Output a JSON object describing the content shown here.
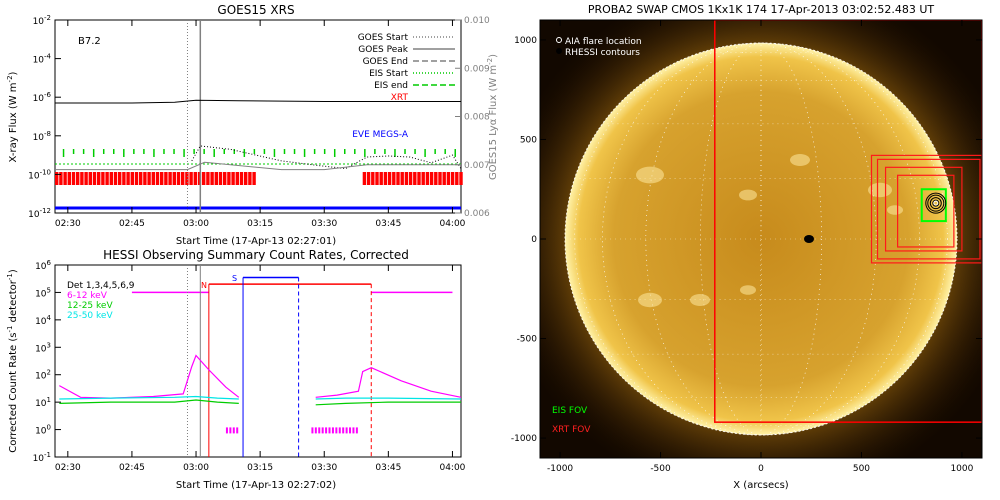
{
  "goes": {
    "title": "GOES15 XRS",
    "flare_class": "B7.2",
    "xtitle": "Start Time (17-Apr-13 02:27:01)",
    "ylabel": "X-ray Flux (W m",
    "ylabel_sup": "-2",
    "ylabel_tail": ")",
    "y2label": "GOES15 Lyα Flux (W m",
    "y2label_sup": "-2",
    "y2label_tail": ")",
    "yticks": [
      {
        "base": "10",
        "exp": "-2"
      },
      {
        "base": "10",
        "exp": "-4"
      },
      {
        "base": "10",
        "exp": "-6"
      },
      {
        "base": "10",
        "exp": "-8"
      },
      {
        "base": "10",
        "exp": "-10"
      },
      {
        "base": "10",
        "exp": "-12"
      }
    ],
    "y2ticks": [
      "0.010",
      "0.009",
      "0.008",
      "0.007",
      "0.006"
    ],
    "legend": [
      {
        "label": "GOES Start",
        "color": "#808080",
        "style": "dotted"
      },
      {
        "label": "GOES Peak",
        "color": "#808080",
        "style": "solid"
      },
      {
        "label": "GOES End",
        "color": "#808080",
        "style": "dashed"
      },
      {
        "label": "EIS Start",
        "color": "#00cc00",
        "style": "dotted"
      },
      {
        "label": "EIS end",
        "color": "#00cc00",
        "style": "dashed"
      },
      {
        "label": "XRT",
        "color": "#ff0000",
        "style": "none"
      },
      {
        "label": "EVE MEGS-A",
        "color": "#0000ff",
        "style": "none"
      }
    ]
  },
  "hessi": {
    "title": "HESSI Observing Summary Count Rates, Corrected",
    "xtitle": "Start Time (17-Apr-13 02:27:02)",
    "ylabel": "Corrected Count Rate (s",
    "ylabel_sup": "-1",
    "ylabel_mid": " detector",
    "ylabel_sup2": "-1",
    "ylabel_tail": ")",
    "yticks": [
      {
        "base": "10",
        "exp": "6"
      },
      {
        "base": "10",
        "exp": "5"
      },
      {
        "base": "10",
        "exp": "4"
      },
      {
        "base": "10",
        "exp": "3"
      },
      {
        "base": "10",
        "exp": "2"
      },
      {
        "base": "10",
        "exp": "1"
      },
      {
        "base": "10",
        "exp": "0"
      },
      {
        "base": "10",
        "exp": "-1"
      }
    ],
    "legend": [
      {
        "label": "Det 1,3,4,5,6,9",
        "color": "#000000"
      },
      {
        "label": "6-12 keV",
        "color": "#ff00ff"
      },
      {
        "label": "12-25 keV",
        "color": "#00cc00"
      },
      {
        "label": "25-50 keV",
        "color": "#00e5e5"
      }
    ],
    "marker_N": "N",
    "marker_S": "S"
  },
  "time_ticks": [
    "02:30",
    "02:45",
    "03:00",
    "03:15",
    "03:30",
    "03:45",
    "04:00"
  ],
  "swap": {
    "title": "PROBA2 SWAP CMOS 1Kx1K 174 17-Apr-2013 03:02:52.483 UT",
    "legend_aia": "AIA flare location",
    "legend_rhessi": "RHESSI contours",
    "eis_fov": "EIS FOV",
    "xrt_fov": "XRT FOV",
    "xlabel": "X (arcsecs)",
    "xticks": [
      "-1000",
      "-500",
      "0",
      "500",
      "1000"
    ],
    "yticks": [
      "1000",
      "500",
      "0",
      "-500",
      "-1000"
    ]
  },
  "chart_data": [
    {
      "type": "line",
      "title": "GOES15 XRS",
      "xlabel": "Start Time (17-Apr-13 02:27:01)",
      "ylabel": "X-ray Flux (W m-2)",
      "y_scale": "log",
      "ylim": [
        1e-12,
        0.01
      ],
      "y2label": "GOES15 Lyα Flux (W m-2)",
      "y2lim": [
        0.006,
        0.01
      ],
      "xlim": [
        "02:27",
        "04:02"
      ],
      "annotations": [
        "B7.2"
      ],
      "series": [
        {
          "name": "",
          "color": "#000000",
          "x": [
            "02:27",
            "02:45",
            "02:55",
            "03:00",
            "03:10",
            "03:30",
            "03:50",
            "04:02"
          ],
          "values": [
            5e-07,
            5e-07,
            5.5e-07,
            7e-07,
            6.5e-07,
            6e-07,
            6e-07,
            6e-07
          ]
        },
        {
          "name": "",
          "color": "#000000",
          "style": "dotted",
          "x": [
            "02:59",
            "03:01",
            "03:04",
            "03:08",
            "03:14",
            "03:20",
            "03:28",
            "03:35",
            "03:40",
            "03:45",
            "03:50",
            "03:55",
            "04:00",
            "04:02"
          ],
          "values": [
            5e-10,
            3e-09,
            2.5e-09,
            2e-09,
            1e-09,
            5e-10,
            3e-10,
            2e-10,
            8e-10,
            9e-10,
            8e-10,
            4e-10,
            1e-09,
            2e-10
          ]
        },
        {
          "name": "",
          "color": "#808080",
          "axis": "y2",
          "x": [
            "02:27",
            "02:58",
            "03:02",
            "03:20",
            "03:30",
            "03:40",
            "04:02"
          ],
          "values": [
            0.0069,
            0.0069,
            0.00705,
            0.0069,
            0.0069,
            0.007,
            0.007
          ]
        }
      ],
      "event_lines": {
        "goes_start": "02:58",
        "goes_peak": "03:01",
        "goes_end": "03:21",
        "eis_start": "03:25",
        "eis_end": "04:01"
      },
      "xrt_intervals": [
        [
          "02:27",
          "03:14"
        ],
        [
          "03:39",
          "04:02"
        ]
      ],
      "eve_megs_a": [
        "02:27",
        "04:02"
      ]
    },
    {
      "type": "line",
      "title": "HESSI Observing Summary Count Rates, Corrected",
      "xlabel": "Start Time (17-Apr-13 02:27:02)",
      "ylabel": "Corrected Count Rate (s-1 detector-1)",
      "y_scale": "log",
      "ylim": [
        0.1,
        1000000.0
      ],
      "xlim": [
        "02:27",
        "04:02"
      ],
      "series": [
        {
          "name": "6-12 keV",
          "color": "#ff00ff",
          "x": [
            "02:28",
            "02:33",
            "02:40",
            "02:50",
            "02:57",
            "02:59",
            "03:00",
            "03:03",
            "03:07",
            "03:10",
            "03:28",
            "03:33",
            "03:38",
            "03:39",
            "03:41",
            "03:48",
            "03:55",
            "04:02"
          ],
          "values": [
            40,
            15,
            14,
            16,
            20,
            200,
            500,
            150,
            35,
            15,
            15,
            18,
            25,
            130,
            180,
            60,
            25,
            15
          ]
        },
        {
          "name": "12-25 keV",
          "color": "#00cc00",
          "x": [
            "02:28",
            "02:40",
            "02:55",
            "03:00",
            "03:05",
            "03:10",
            "03:28",
            "03:35",
            "03:45",
            "04:02"
          ],
          "values": [
            9,
            10,
            10,
            12,
            10,
            9,
            8,
            9,
            10,
            10
          ]
        },
        {
          "name": "25-50 keV",
          "color": "#00e5e5",
          "x": [
            "02:28",
            "02:40",
            "02:55",
            "03:00",
            "03:05",
            "03:10",
            "03:28",
            "03:35",
            "03:45",
            "04:02"
          ],
          "values": [
            13,
            14,
            15,
            16,
            14,
            13,
            13,
            14,
            14,
            13
          ]
        }
      ],
      "event_lines": {
        "goes_start": "02:58",
        "goes_peak": "03:01",
        "night_N": "03:03",
        "saa_S": "03:11",
        "saa_end": "03:24",
        "red_end": "03:41"
      }
    },
    {
      "type": "scatter",
      "title": "PROBA2 SWAP CMOS 1Kx1K 174 17-Apr-2013 03:02:52.483 UT",
      "xlabel": "X (arcsecs)",
      "xlim": [
        -1100,
        1100
      ],
      "ylim": [
        -1100,
        1100
      ],
      "points": [
        {
          "name": "AIA flare location",
          "x": 870,
          "y": 180
        },
        {
          "name": "RHESSI contours",
          "x": 870,
          "y": 180
        }
      ],
      "fov": {
        "eis": {
          "x": [
            800,
            920
          ],
          "y": [
            90,
            250
          ]
        },
        "xrt": {
          "x": [
            -230,
            1100
          ],
          "y": [
            -920,
            1100
          ]
        }
      }
    }
  ]
}
